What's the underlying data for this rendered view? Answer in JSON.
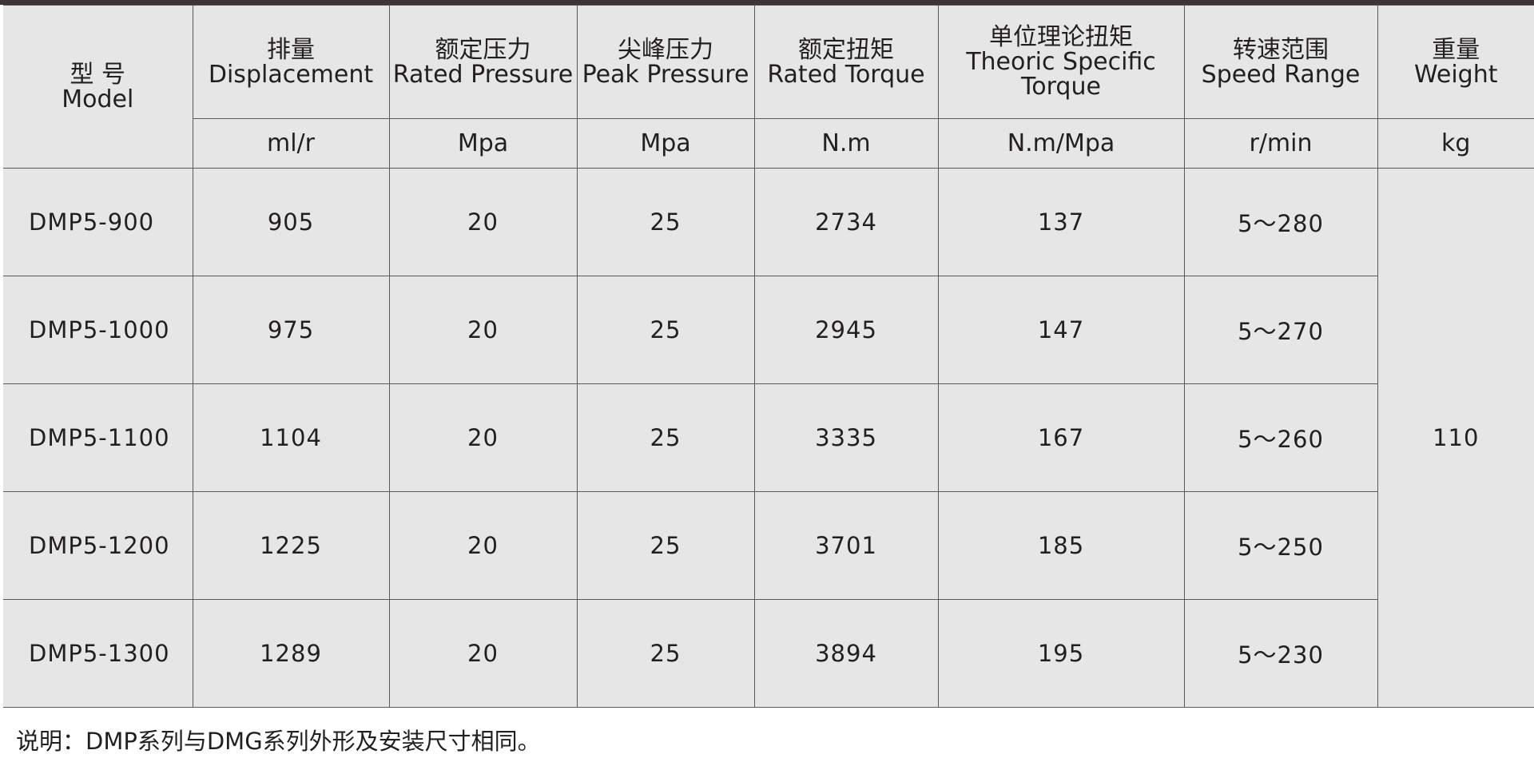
{
  "table": {
    "headers": [
      {
        "zh": "型  号",
        "en": "Model",
        "unit": ""
      },
      {
        "zh": "排量",
        "en": "Displacement",
        "unit": "ml/r"
      },
      {
        "zh": "额定压力",
        "en": "Rated Pressure",
        "unit": "Mpa"
      },
      {
        "zh": "尖峰压力",
        "en": "Peak Pressure",
        "unit": "Mpa"
      },
      {
        "zh": "额定扭矩",
        "en": "Rated Torque",
        "unit": "N.m"
      },
      {
        "zh": "单位理论扭矩",
        "en": "Theoric Specific Torque",
        "unit": "N.m/Mpa"
      },
      {
        "zh": "转速范围",
        "en": "Speed Range",
        "unit": "r/min"
      },
      {
        "zh": "重量",
        "en": "Weight",
        "unit": "kg"
      }
    ],
    "rows": [
      [
        "DMP5-900",
        "905",
        "20",
        "25",
        "2734",
        "137",
        "5～280"
      ],
      [
        "DMP5-1000",
        "975",
        "20",
        "25",
        "2945",
        "147",
        "5～270"
      ],
      [
        "DMP5-1100",
        "1104",
        "20",
        "25",
        "3335",
        "167",
        "5～260"
      ],
      [
        "DMP5-1200",
        "1225",
        "20",
        "25",
        "3701",
        "185",
        "5～250"
      ],
      [
        "DMP5-1300",
        "1289",
        "20",
        "25",
        "3894",
        "195",
        "5～230"
      ]
    ],
    "weight": "110"
  },
  "note": "说明：DMP系列与DMG系列外形及安装尺寸相同。"
}
